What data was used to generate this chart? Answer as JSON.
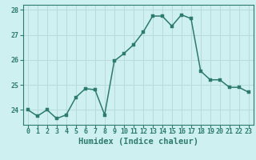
{
  "x": [
    0,
    1,
    2,
    3,
    4,
    5,
    6,
    7,
    8,
    9,
    10,
    11,
    12,
    13,
    14,
    15,
    16,
    17,
    18,
    19,
    20,
    21,
    22,
    23
  ],
  "y": [
    24.0,
    23.75,
    24.0,
    23.65,
    23.8,
    24.5,
    24.85,
    24.8,
    23.8,
    25.95,
    26.25,
    26.6,
    27.1,
    27.75,
    27.75,
    27.35,
    27.8,
    27.65,
    25.55,
    25.2,
    25.2,
    24.9,
    24.9,
    24.7
  ],
  "line_color": "#2d7a6e",
  "marker_color": "#2d7a6e",
  "bg_color": "#cef0f0",
  "grid_color": "#b8dada",
  "xlabel": "Humidex (Indice chaleur)",
  "ylim": [
    23.4,
    28.2
  ],
  "xlim": [
    -0.5,
    23.5
  ],
  "yticks": [
    24,
    25,
    26,
    27,
    28
  ],
  "xticks": [
    0,
    1,
    2,
    3,
    4,
    5,
    6,
    7,
    8,
    9,
    10,
    11,
    12,
    13,
    14,
    15,
    16,
    17,
    18,
    19,
    20,
    21,
    22,
    23
  ],
  "tick_color": "#2d7a6e",
  "label_color": "#2d7a6e",
  "font_size_xlabel": 7.5,
  "font_size_ticks": 6.0,
  "line_width": 1.1,
  "marker_size": 2.2
}
